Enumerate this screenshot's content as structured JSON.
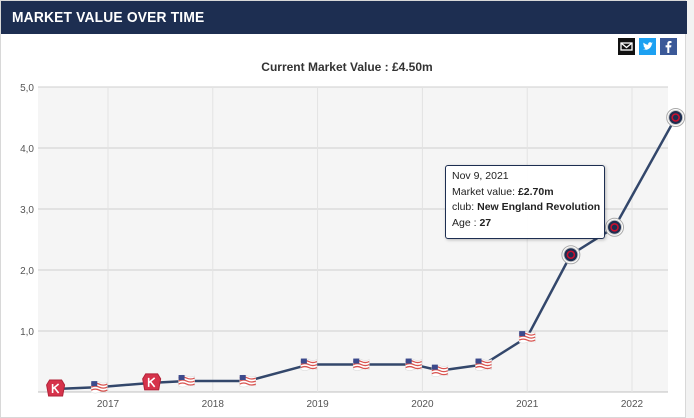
{
  "header": {
    "title": "MARKET VALUE OVER TIME"
  },
  "share": {
    "mail_icon": "mail-icon",
    "twitter_icon": "twitter-icon",
    "facebook_icon": "facebook-icon"
  },
  "colors": {
    "header_bg": "#1d2e51",
    "line": "#33476b",
    "plot_bg": "#f5f5f5",
    "kansas_badge": "#d6334b",
    "flag_red": "#d9534f",
    "flag_blue": "#3c4a8c"
  },
  "chart_data": {
    "type": "line",
    "title": "Current Market Value : £4.50m",
    "xlabel": "",
    "ylabel": "",
    "ylim": [
      0,
      5
    ],
    "yticks": [
      "5,0",
      "4,0",
      "3,0",
      "2,0",
      "1,0"
    ],
    "xticks": [
      "2017",
      "2018",
      "2019",
      "2020",
      "2021",
      "2022"
    ],
    "grid": true,
    "series": [
      {
        "values": [
          {
            "x": "2016-07",
            "y": 0.05,
            "club_badge": "kansas-badge"
          },
          {
            "x": "2016-12",
            "y": 0.08,
            "club_badge": "us-flag"
          },
          {
            "x": "2017-06",
            "y": 0.15,
            "club_badge": "kansas-badge"
          },
          {
            "x": "2017-10",
            "y": 0.18,
            "club_badge": "us-flag"
          },
          {
            "x": "2018-05",
            "y": 0.18,
            "club_badge": "us-flag"
          },
          {
            "x": "2018-12",
            "y": 0.45,
            "club_badge": "us-flag"
          },
          {
            "x": "2019-06",
            "y": 0.45,
            "club_badge": "us-flag"
          },
          {
            "x": "2019-12",
            "y": 0.45,
            "club_badge": "us-flag"
          },
          {
            "x": "2020-03",
            "y": 0.35,
            "club_badge": "us-flag"
          },
          {
            "x": "2020-08",
            "y": 0.45,
            "club_badge": "us-flag"
          },
          {
            "x": "2021-01",
            "y": 0.9,
            "club_badge": "us-flag"
          },
          {
            "x": "2021-06",
            "y": 2.25,
            "club_badge": "revolution-badge"
          },
          {
            "x": "2021-11",
            "y": 2.7,
            "club_badge": "revolution-badge"
          },
          {
            "x": "2022-06",
            "y": 4.5,
            "club_badge": "revolution-badge"
          }
        ]
      }
    ],
    "tooltip": {
      "date": "Nov 9, 2021",
      "market_value_label": "Market value:",
      "market_value": "£2.70m",
      "club_label": "club:",
      "club": "New England Revolution",
      "age_label": "Age :",
      "age": "27"
    }
  }
}
